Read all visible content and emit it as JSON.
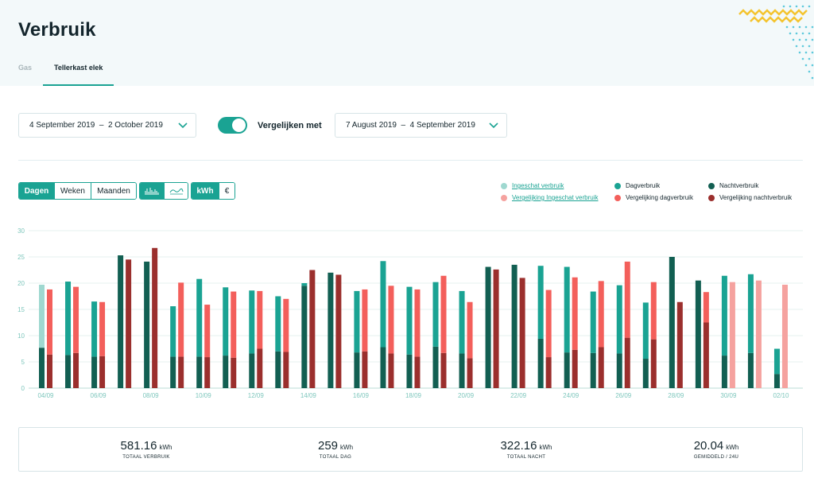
{
  "page": {
    "title": "Verbruik"
  },
  "tabs": [
    {
      "label": "Gas",
      "active": false
    },
    {
      "label": "Tellerkast elek",
      "active": true
    }
  ],
  "filters": {
    "period": "4 September 2019  –  2 October 2019",
    "compare_label": "Vergelijken met",
    "compare_enabled": true,
    "compare_period": "7 August 2019  –  4 September 2019"
  },
  "controls": {
    "period_buttons": [
      {
        "label": "Dagen",
        "active": true
      },
      {
        "label": "Weken",
        "active": false
      },
      {
        "label": "Maanden",
        "active": false
      }
    ],
    "chart_type_icons": [
      {
        "icon": "bar-chart-icon",
        "active": true
      },
      {
        "icon": "line-chart-icon",
        "active": false
      }
    ],
    "unit_buttons": [
      {
        "label": "kWh",
        "active": true
      },
      {
        "label": "€",
        "active": false
      }
    ]
  },
  "colors": {
    "accent": "#1aa393",
    "dag": "#1aa393",
    "nacht": "#125f52",
    "ingeschat": "#9fd8d0",
    "vgl_dag": "#f35f5b",
    "vgl_nacht": "#9b2f2d",
    "vgl_ingeschat": "#f5a29f"
  },
  "legend": {
    "col1": [
      {
        "label": "Ingeschat verbruik",
        "color": "#9fd8d0",
        "link": true
      },
      {
        "label": "Vergelijking Ingeschat verbruik",
        "color": "#f5a29f",
        "link": true
      }
    ],
    "col2": [
      {
        "label": "Dagverbruik",
        "color": "#1aa393",
        "link": false
      },
      {
        "label": "Vergelijking dagverbruik",
        "color": "#f35f5b",
        "link": false
      }
    ],
    "col3": [
      {
        "label": "Nachtverbruik",
        "color": "#125f52",
        "link": false
      },
      {
        "label": "Vergelijking nachtverbruik",
        "color": "#9b2f2d",
        "link": false
      }
    ]
  },
  "chart_data": {
    "type": "bar",
    "stacked": true,
    "grouped": true,
    "ylim": [
      0,
      30
    ],
    "yticks": [
      0,
      5,
      10,
      15,
      20,
      25,
      30
    ],
    "grid": true,
    "categories": [
      "04/09",
      "05/09",
      "06/09",
      "07/09",
      "08/09",
      "09/09",
      "10/09",
      "11/09",
      "12/09",
      "13/09",
      "14/09",
      "15/09",
      "16/09",
      "17/09",
      "18/09",
      "19/09",
      "20/09",
      "21/09",
      "22/09",
      "23/09",
      "24/09",
      "25/09",
      "26/09",
      "27/09",
      "28/09",
      "29/09",
      "30/09",
      "01/10",
      "02/10"
    ],
    "xtick_labels": [
      "04/09",
      "",
      "06/09",
      "",
      "08/09",
      "",
      "10/09",
      "",
      "12/09",
      "",
      "14/09",
      "",
      "16/09",
      "",
      "18/09",
      "",
      "20/09",
      "",
      "22/09",
      "",
      "24/09",
      "",
      "26/09",
      "",
      "28/09",
      "",
      "30/09",
      "",
      "02/10"
    ],
    "current": {
      "nacht": [
        7.7,
        6.3,
        6.0,
        25.3,
        24.1,
        6.0,
        6.0,
        6.2,
        6.6,
        7.0,
        19.5,
        22.0,
        6.8,
        7.8,
        6.4,
        7.9,
        6.6,
        23.1,
        23.5,
        9.4,
        6.8,
        6.7,
        6.6,
        5.6,
        25.0,
        20.5,
        6.2,
        6.7,
        2.7
      ],
      "dag": [
        0,
        14.0,
        10.5,
        0,
        0,
        9.6,
        14.8,
        13.0,
        12.0,
        10.5,
        0.5,
        0,
        11.7,
        16.4,
        12.9,
        12.3,
        11.9,
        0,
        0,
        13.9,
        16.3,
        11.7,
        13.0,
        10.7,
        0,
        0,
        15.2,
        15.0,
        4.8
      ],
      "ingeschat": [
        12.0,
        0,
        0,
        0,
        0,
        0,
        0,
        0,
        0,
        0,
        0,
        0,
        0,
        0,
        0,
        0,
        0,
        0,
        0,
        0,
        0,
        0,
        0,
        0,
        0,
        0,
        0,
        0,
        0
      ]
    },
    "comparison": {
      "nacht": [
        6.4,
        6.7,
        6.1,
        24.5,
        26.7,
        6.0,
        5.9,
        5.8,
        7.5,
        6.9,
        22.5,
        21.6,
        7.0,
        6.6,
        6.0,
        6.7,
        5.7,
        22.6,
        21.0,
        5.9,
        7.3,
        7.8,
        9.6,
        9.3,
        16.4,
        12.5,
        0,
        0,
        0
      ],
      "dag": [
        12.4,
        12.6,
        10.3,
        0,
        0,
        14.1,
        10.0,
        12.6,
        11.0,
        10.1,
        0,
        0,
        11.8,
        12.9,
        12.8,
        14.7,
        10.7,
        0,
        0,
        12.8,
        13.8,
        12.6,
        14.5,
        10.9,
        0,
        5.8,
        0,
        0,
        0
      ],
      "ingeschat": [
        0,
        0,
        0,
        0,
        0,
        0,
        0,
        0,
        0,
        0,
        0,
        0,
        0,
        0,
        0,
        0,
        0,
        0,
        0,
        0,
        0,
        0,
        0,
        0,
        0,
        0,
        20.2,
        20.5,
        19.7
      ]
    }
  },
  "summary": [
    {
      "value": "581.16",
      "unit": "kWh",
      "label": "TOTAAL VERBRUIK"
    },
    {
      "value": "259",
      "unit": "kWh",
      "label": "TOTAAL DAG"
    },
    {
      "value": "322.16",
      "unit": "kWh",
      "label": "TOTAAL NACHT"
    },
    {
      "value": "20.04",
      "unit": "kWh",
      "label": "GEMIDDELD / 24U"
    }
  ]
}
